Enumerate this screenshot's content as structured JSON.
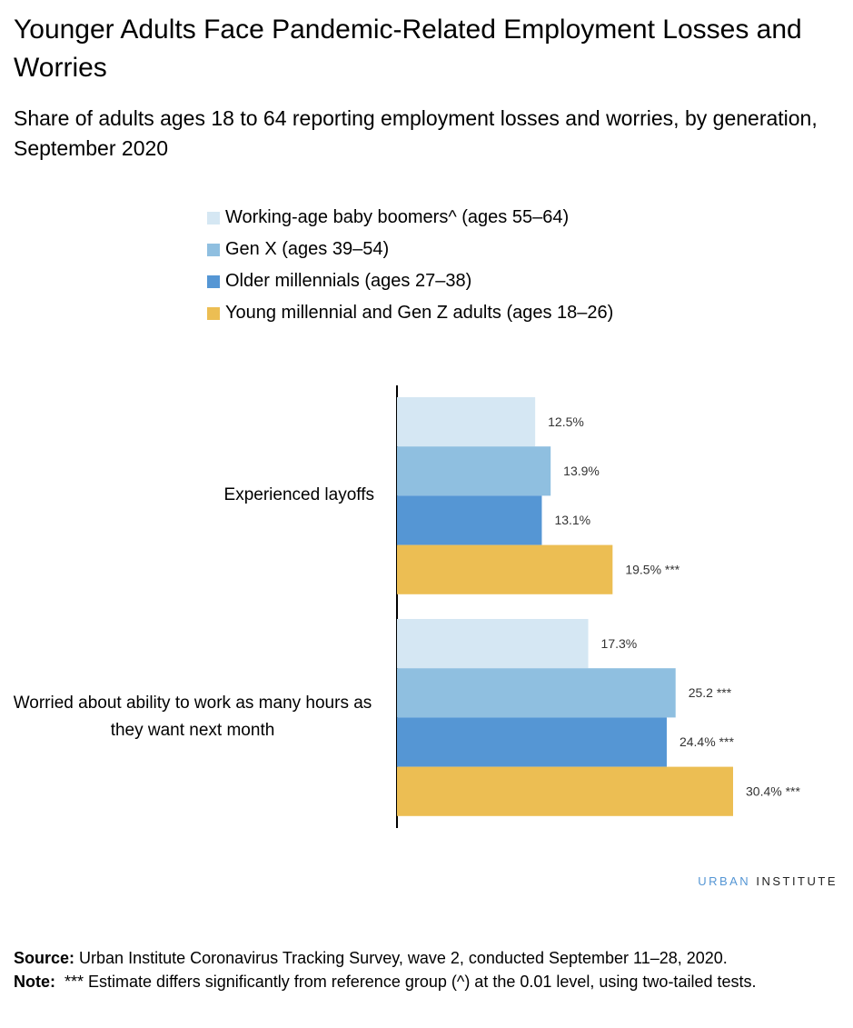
{
  "chart_data": {
    "type": "bar",
    "orientation": "horizontal",
    "title": "Younger Adults Face Pandemic-Related Employment Losses and Worries",
    "subtitle": "Share of adults ages 18 to 64 reporting employment losses and worries, by generation, September 2020",
    "categories": [
      "Experienced layoffs",
      "Worried about ability to work as many hours as they want next month"
    ],
    "series": [
      {
        "name": "Working-age baby boomers^ (ages 55–64)",
        "color": "#d5e7f3",
        "values": [
          12.5,
          17.3
        ],
        "value_labels": [
          "12.5%",
          "17.3%"
        ]
      },
      {
        "name": "Gen X (ages 39–54)",
        "color": "#8fbfe0",
        "values": [
          13.9,
          25.2
        ],
        "value_labels": [
          "13.9%",
          "25.2 ***"
        ]
      },
      {
        "name": "Older millennials (ages 27–38)",
        "color": "#5596d4",
        "values": [
          13.1,
          24.4
        ],
        "value_labels": [
          "13.1%",
          "24.4% ***"
        ]
      },
      {
        "name": "Young millennial and Gen Z adults (ages 18–26)",
        "color": "#ecbe53",
        "values": [
          19.5,
          30.4
        ],
        "value_labels": [
          "19.5% ***",
          "30.4% ***"
        ]
      }
    ],
    "brand": {
      "first": "URBAN",
      "second": "INSTITUTE"
    },
    "source_label": "Source:",
    "source": "Urban Institute Coronavirus Tracking Survey, wave 2, conducted September 11–28, 2020.",
    "note_label": "Note:",
    "note": "*** Estimate differs significantly from reference group (^) at the 0.01 level, using two-tailed tests."
  }
}
